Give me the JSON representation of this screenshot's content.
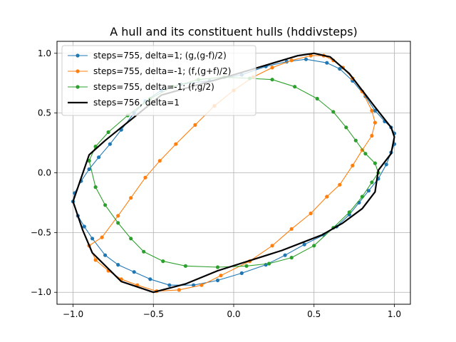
{
  "chart_data": {
    "type": "line",
    "title": "A hull and its constituent hulls (hddivsteps)",
    "xlabel": "",
    "ylabel": "",
    "xlim": [
      -1.1,
      1.1
    ],
    "ylim": [
      -1.1,
      1.1
    ],
    "grid": true,
    "legend_position": "top-left",
    "x_ticks": [
      -1.0,
      -0.5,
      0.0,
      0.5,
      1.0
    ],
    "x_tick_labels": [
      "−1.0",
      "−0.5",
      "0.0",
      "0.5",
      "1.0"
    ],
    "y_ticks": [
      -1.0,
      -0.5,
      0.0,
      0.5,
      1.0
    ],
    "y_tick_labels": [
      "−1.0",
      "−0.5",
      "0.0",
      "0.5",
      "1.0"
    ],
    "series": [
      {
        "name": "steps=755, delta=1; (g,(g-f)/2)",
        "color": "#1f77b4",
        "markers": true,
        "points": [
          [
            -1.0,
            -0.24
          ],
          [
            -0.99,
            -0.17
          ],
          [
            -0.95,
            -0.07
          ],
          [
            -0.9,
            0.03
          ],
          [
            -0.84,
            0.13
          ],
          [
            -0.77,
            0.24
          ],
          [
            -0.7,
            0.36
          ],
          [
            -0.62,
            0.5
          ],
          [
            -0.55,
            0.6
          ],
          [
            -0.45,
            0.69
          ],
          [
            -0.33,
            0.74
          ],
          [
            -0.15,
            0.77
          ],
          [
            0.05,
            0.82
          ],
          [
            0.2,
            0.89
          ],
          [
            0.33,
            0.93
          ],
          [
            0.45,
            0.95
          ],
          [
            0.58,
            0.92
          ],
          [
            0.66,
            0.87
          ],
          [
            0.74,
            0.77
          ],
          [
            0.82,
            0.64
          ],
          [
            0.88,
            0.52
          ],
          [
            0.94,
            0.43
          ],
          [
            0.98,
            0.38
          ],
          [
            1.0,
            0.33
          ],
          [
            1.0,
            0.24
          ],
          [
            0.98,
            0.17
          ],
          [
            0.95,
            0.07
          ],
          [
            0.9,
            -0.05
          ],
          [
            0.84,
            -0.15
          ],
          [
            0.78,
            -0.25
          ],
          [
            0.72,
            -0.35
          ],
          [
            0.64,
            -0.45
          ],
          [
            0.56,
            -0.52
          ],
          [
            0.44,
            -0.6
          ],
          [
            0.32,
            -0.69
          ],
          [
            0.2,
            -0.77
          ],
          [
            0.05,
            -0.84
          ],
          [
            -0.1,
            -0.9
          ],
          [
            -0.25,
            -0.94
          ],
          [
            -0.4,
            -0.94
          ],
          [
            -0.52,
            -0.89
          ],
          [
            -0.62,
            -0.83
          ],
          [
            -0.72,
            -0.77
          ],
          [
            -0.8,
            -0.69
          ],
          [
            -0.88,
            -0.55
          ],
          [
            -0.93,
            -0.45
          ],
          [
            -0.97,
            -0.36
          ],
          [
            -1.0,
            -0.24
          ]
        ]
      },
      {
        "name": "steps=755, delta=-1; (f,(g+f)/2)",
        "color": "#ff7f0e",
        "markers": true,
        "points": [
          [
            -0.9,
            -0.61
          ],
          [
            -0.82,
            -0.54
          ],
          [
            -0.72,
            -0.36
          ],
          [
            -0.64,
            -0.21
          ],
          [
            -0.55,
            -0.04
          ],
          [
            -0.46,
            0.1
          ],
          [
            -0.36,
            0.24
          ],
          [
            -0.24,
            0.4
          ],
          [
            -0.12,
            0.56
          ],
          [
            0.0,
            0.69
          ],
          [
            0.12,
            0.8
          ],
          [
            0.24,
            0.88
          ],
          [
            0.36,
            0.94
          ],
          [
            0.48,
            0.98
          ],
          [
            0.56,
            0.98
          ],
          [
            0.62,
            0.94
          ],
          [
            0.68,
            0.88
          ],
          [
            0.74,
            0.79
          ],
          [
            0.8,
            0.68
          ],
          [
            0.86,
            0.52
          ],
          [
            0.88,
            0.42
          ],
          [
            0.86,
            0.31
          ],
          [
            0.8,
            0.19
          ],
          [
            0.74,
            0.06
          ],
          [
            0.66,
            -0.1
          ],
          [
            0.58,
            -0.2
          ],
          [
            0.48,
            -0.34
          ],
          [
            0.36,
            -0.47
          ],
          [
            0.24,
            -0.61
          ],
          [
            0.1,
            -0.74
          ],
          [
            -0.08,
            -0.86
          ],
          [
            -0.2,
            -0.94
          ],
          [
            -0.34,
            -0.98
          ],
          [
            -0.48,
            -0.99
          ],
          [
            -0.6,
            -0.94
          ],
          [
            -0.7,
            -0.89
          ],
          [
            -0.78,
            -0.82
          ],
          [
            -0.86,
            -0.73
          ],
          [
            -0.9,
            -0.61
          ]
        ]
      },
      {
        "name": "steps=755, delta=-1; (f,g/2)",
        "color": "#2ca02c",
        "markers": true,
        "points": [
          [
            -0.9,
            0.1
          ],
          [
            -0.86,
            -0.12
          ],
          [
            -0.8,
            -0.27
          ],
          [
            -0.72,
            -0.42
          ],
          [
            -0.64,
            -0.55
          ],
          [
            -0.56,
            -0.66
          ],
          [
            -0.44,
            -0.74
          ],
          [
            -0.3,
            -0.78
          ],
          [
            -0.1,
            -0.79
          ],
          [
            0.08,
            -0.78
          ],
          [
            0.22,
            -0.76
          ],
          [
            0.36,
            -0.71
          ],
          [
            0.5,
            -0.61
          ],
          [
            0.62,
            -0.46
          ],
          [
            0.72,
            -0.33
          ],
          [
            0.8,
            -0.2
          ],
          [
            0.86,
            -0.08
          ],
          [
            0.9,
            0.0
          ],
          [
            0.88,
            0.08
          ],
          [
            0.82,
            0.16
          ],
          [
            0.76,
            0.27
          ],
          [
            0.7,
            0.38
          ],
          [
            0.62,
            0.51
          ],
          [
            0.52,
            0.62
          ],
          [
            0.38,
            0.72
          ],
          [
            0.24,
            0.78
          ],
          [
            0.1,
            0.79
          ],
          [
            -0.06,
            0.8
          ],
          [
            -0.22,
            0.78
          ],
          [
            -0.38,
            0.72
          ],
          [
            -0.52,
            0.62
          ],
          [
            -0.66,
            0.48
          ],
          [
            -0.78,
            0.34
          ],
          [
            -0.86,
            0.22
          ],
          [
            -0.9,
            0.1
          ]
        ]
      },
      {
        "name": "steps=756, delta=1",
        "color": "#000000",
        "markers": false,
        "points": [
          [
            -1.0,
            -0.24
          ],
          [
            -0.9,
            0.15
          ],
          [
            -0.8,
            0.27
          ],
          [
            -0.45,
            0.65
          ],
          [
            0.0,
            0.82
          ],
          [
            0.4,
            0.98
          ],
          [
            0.5,
            1.0
          ],
          [
            0.6,
            0.97
          ],
          [
            0.72,
            0.83
          ],
          [
            0.88,
            0.55
          ],
          [
            0.98,
            0.38
          ],
          [
            1.0,
            0.3
          ],
          [
            0.98,
            0.16
          ],
          [
            0.9,
            0.02
          ],
          [
            0.88,
            -0.16
          ],
          [
            0.8,
            -0.3
          ],
          [
            0.68,
            -0.42
          ],
          [
            0.55,
            -0.52
          ],
          [
            0.3,
            -0.65
          ],
          [
            -0.1,
            -0.82
          ],
          [
            -0.3,
            -0.93
          ],
          [
            -0.5,
            -1.0
          ],
          [
            -0.7,
            -0.91
          ],
          [
            -0.88,
            -0.67
          ],
          [
            -0.94,
            -0.48
          ],
          [
            -1.0,
            -0.24
          ]
        ]
      }
    ]
  }
}
